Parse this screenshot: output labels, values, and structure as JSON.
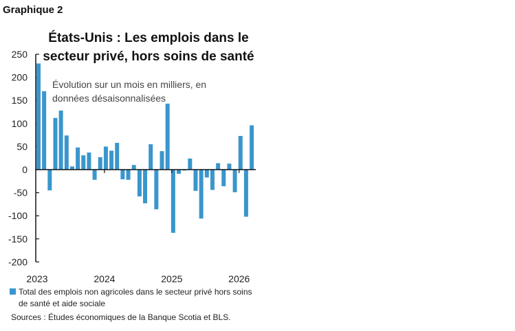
{
  "figure_label": "Graphique 2",
  "chart_data": {
    "type": "bar",
    "title": "États-Unis : Les emplois dans le secteur privé, hors soins de santé",
    "subtitle": "Évolution sur un mois en milliers, en données désaisonnalisées",
    "series": [
      {
        "name": "Total des emplois non agricoles dans le secteur privé hors soins de santé et aide sociale",
        "color": "#3a96cc",
        "values": [
          230,
          170,
          -45,
          112,
          128,
          74,
          7,
          48,
          31,
          37,
          -22,
          27,
          50,
          41,
          58,
          -21,
          -22,
          10,
          -58,
          -73,
          55,
          -86,
          40,
          143,
          -137,
          -9,
          -2,
          24,
          -46,
          -106,
          -17,
          -44,
          14,
          -36,
          13,
          -49,
          73,
          -102,
          96
        ]
      }
    ],
    "x_start": "2023-01",
    "x_end": "2026-03",
    "x_tick_labels": [
      {
        "label": "2023",
        "index": 0
      },
      {
        "label": "2024",
        "index": 12
      },
      {
        "label": "2025",
        "index": 24
      },
      {
        "label": "2026",
        "index": 36
      }
    ],
    "y_ticks": [
      250,
      200,
      150,
      100,
      50,
      0,
      -50,
      -100,
      -150,
      -200
    ],
    "ylim": [
      -200,
      250
    ],
    "legend_line1": "Total des emplois non agricoles dans le secteur privé hors soins",
    "legend_line2": "de santé et aide sociale",
    "legend_placement": "bottom"
  },
  "sources": "Sources : Études économiques de la Banque Scotia et BLS."
}
